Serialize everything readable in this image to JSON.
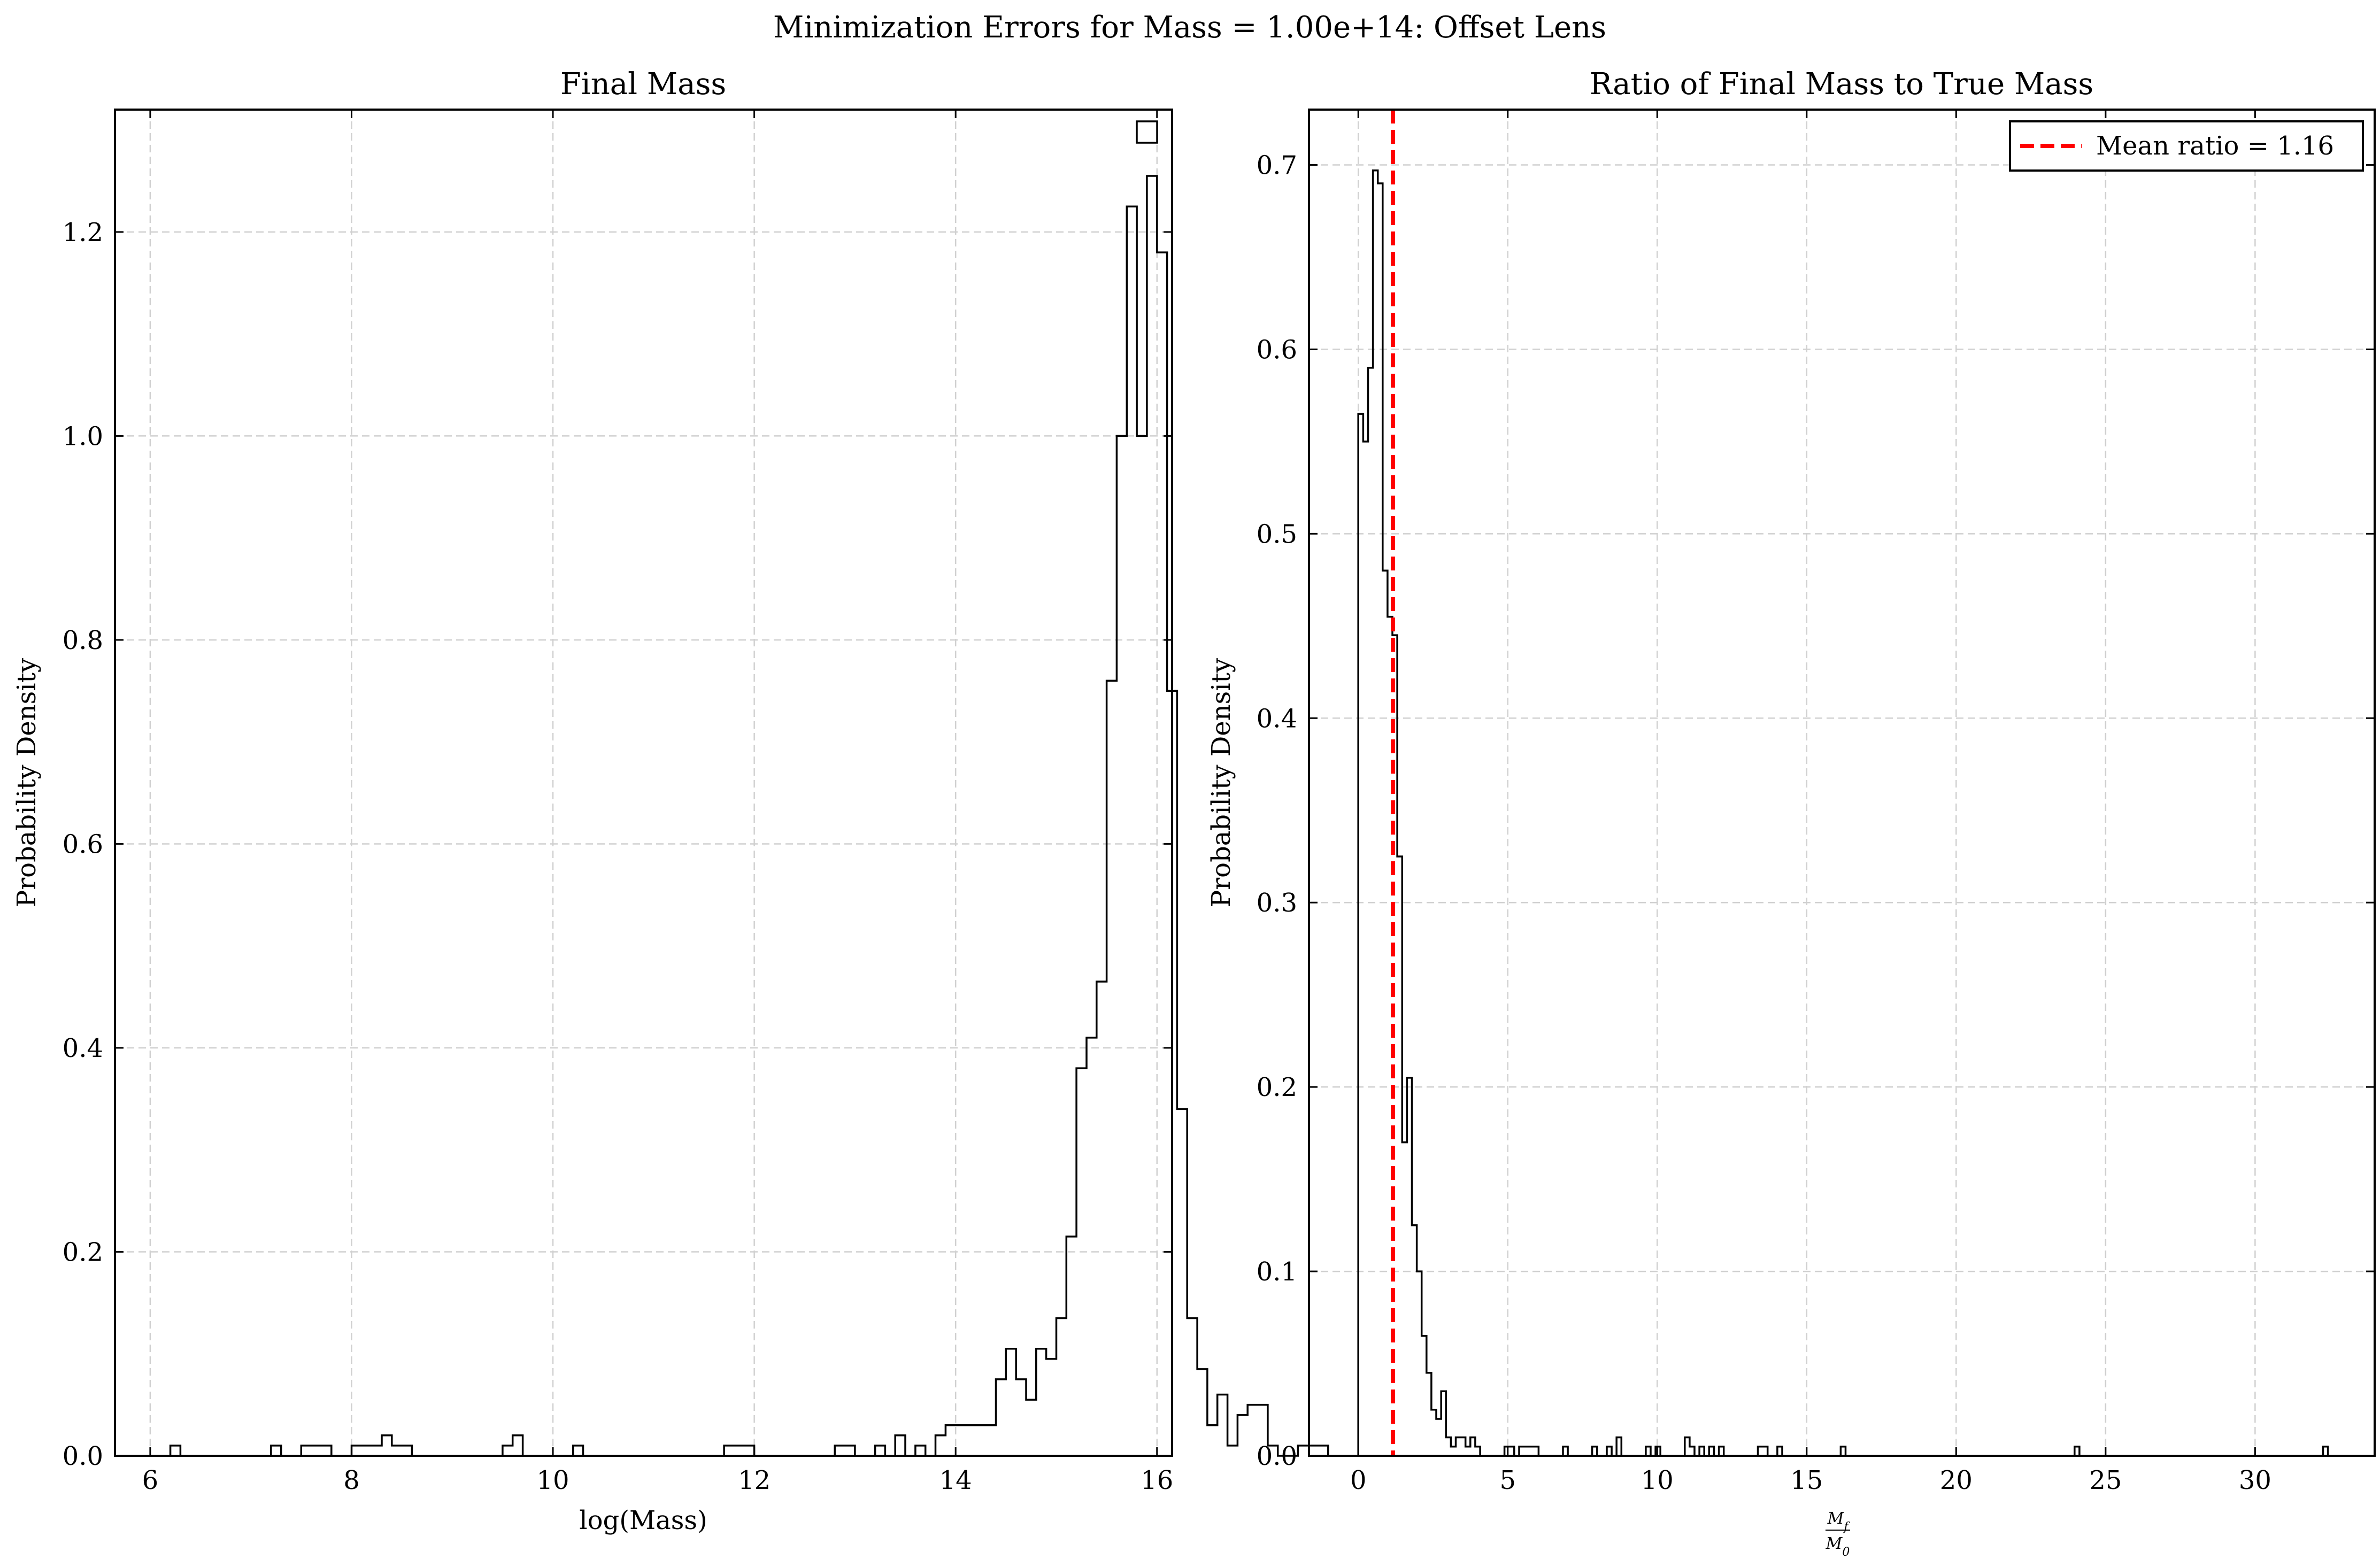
{
  "figure": {
    "suptitle": "Minimization Errors for Mass = 1.00e+14: Offset Lens"
  },
  "chart_data": [
    {
      "type": "histogram",
      "title": "Final Mass",
      "xlabel": "log(Mass)",
      "ylabel": "Probability Density",
      "xlim": [
        5.65,
        16.15
      ],
      "ylim": [
        0,
        1.32
      ],
      "xticks": [
        6,
        8,
        10,
        12,
        14,
        16
      ],
      "xtick_labels": [
        "6",
        "8",
        "10",
        "12",
        "14",
        "16"
      ],
      "yticks": [
        0.0,
        0.2,
        0.4,
        0.6,
        0.8,
        1.0,
        1.2
      ],
      "ytick_labels": [
        "0.0",
        "0.2",
        "0.4",
        "0.6",
        "0.8",
        "1.0",
        "1.2"
      ],
      "grid": true,
      "legend": {
        "position": "top-right",
        "entries": [
          ""
        ]
      },
      "bins_start": 6.0,
      "bin_width": 0.1,
      "values": [
        0,
        0,
        0.01,
        0,
        0,
        0,
        0,
        0,
        0,
        0,
        0,
        0,
        0.01,
        0,
        0,
        0.01,
        0.01,
        0.01,
        0,
        0,
        0.01,
        0.01,
        0.01,
        0.02,
        0.01,
        0.01,
        0,
        0,
        0,
        0,
        0,
        0,
        0,
        0,
        0,
        0.01,
        0.02,
        0,
        0,
        0,
        0,
        0,
        0.01,
        0,
        0,
        0,
        0,
        0,
        0,
        0,
        0,
        0,
        0,
        0,
        0,
        0,
        0,
        0.01,
        0.01,
        0.01,
        0,
        0,
        0,
        0,
        0,
        0,
        0,
        0,
        0.01,
        0.01,
        0,
        0,
        0.01,
        0,
        0.02,
        0,
        0.01,
        0,
        0.02,
        0.03,
        0.03,
        0.03,
        0.03,
        0.03,
        0.075,
        0.105,
        0.075,
        0.055,
        0.105,
        0.095,
        0.135,
        0.215,
        0.38,
        0.41,
        0.465,
        0.76,
        1.0,
        1.225,
        1.0,
        1.255,
        1.18,
        0.75,
        0.34,
        0.135,
        0.085,
        0.03,
        0.06,
        0.01,
        0.04,
        0.05,
        0.05,
        0.01,
        0,
        0,
        0.01,
        0.01,
        0.01
      ]
    },
    {
      "type": "histogram",
      "title": "Ratio of Final Mass to True Mass",
      "xlabel": "M_f / M_0",
      "xlabel_num": "M",
      "xlabel_num_sub": "f",
      "xlabel_den": "M",
      "xlabel_den_sub": "0",
      "ylabel": "Probability Density",
      "xlim": [
        -1.65,
        34.0
      ],
      "ylim": [
        0,
        0.73
      ],
      "xticks": [
        0,
        5,
        10,
        15,
        20,
        25,
        30
      ],
      "xtick_labels": [
        "0",
        "5",
        "10",
        "15",
        "20",
        "25",
        "30"
      ],
      "yticks": [
        0.0,
        0.1,
        0.2,
        0.3,
        0.4,
        0.5,
        0.6,
        0.7
      ],
      "ytick_labels": [
        "0.0",
        "0.1",
        "0.2",
        "0.3",
        "0.4",
        "0.5",
        "0.6",
        "0.7"
      ],
      "grid": true,
      "legend": {
        "position": "top-right",
        "entries": [
          "Mean ratio = 1.16"
        ]
      },
      "mean_ratio": 1.16,
      "colors": {
        "mean_line": "#ff0000",
        "histogram": "#000000"
      },
      "bins_start": 0.0,
      "bin_width": 0.163,
      "values": [
        0.565,
        0.55,
        0.59,
        0.697,
        0.69,
        0.48,
        0.455,
        0.445,
        0.325,
        0.17,
        0.205,
        0.125,
        0.1,
        0.065,
        0.045,
        0.025,
        0.02,
        0.035,
        0.01,
        0.005,
        0.01,
        0.01,
        0.005,
        0.01,
        0.005,
        0,
        0,
        0,
        0,
        0,
        0.005,
        0.005,
        0,
        0.005,
        0.005,
        0.005,
        0.005,
        0,
        0,
        0,
        0,
        0,
        0.005,
        0,
        0,
        0,
        0,
        0,
        0.005,
        0,
        0,
        0.005,
        0,
        0.01,
        0,
        0,
        0,
        0,
        0,
        0.005,
        0,
        0.005,
        0,
        0,
        0,
        0,
        0,
        0.01,
        0.005,
        0,
        0.005,
        0,
        0.005,
        0,
        0.005,
        0,
        0,
        0,
        0,
        0,
        0,
        0,
        0.005,
        0.005,
        0,
        0,
        0.005,
        0,
        0,
        0,
        0,
        0,
        0,
        0,
        0,
        0,
        0,
        0,
        0,
        0.005,
        0,
        0,
        0,
        0,
        0,
        0,
        0,
        0,
        0,
        0,
        0,
        0,
        0,
        0,
        0,
        0,
        0,
        0,
        0,
        0,
        0,
        0,
        0,
        0,
        0,
        0,
        0,
        0,
        0,
        0,
        0,
        0,
        0,
        0,
        0,
        0,
        0,
        0,
        0,
        0,
        0,
        0,
        0,
        0,
        0,
        0,
        0,
        0.005,
        0,
        0,
        0,
        0,
        0,
        0,
        0,
        0,
        0,
        0,
        0,
        0,
        0,
        0,
        0,
        0,
        0,
        0,
        0,
        0,
        0,
        0,
        0,
        0,
        0,
        0,
        0,
        0,
        0,
        0,
        0,
        0,
        0,
        0,
        0,
        0,
        0,
        0,
        0,
        0,
        0,
        0,
        0,
        0,
        0,
        0,
        0,
        0,
        0,
        0,
        0.005
      ]
    }
  ]
}
